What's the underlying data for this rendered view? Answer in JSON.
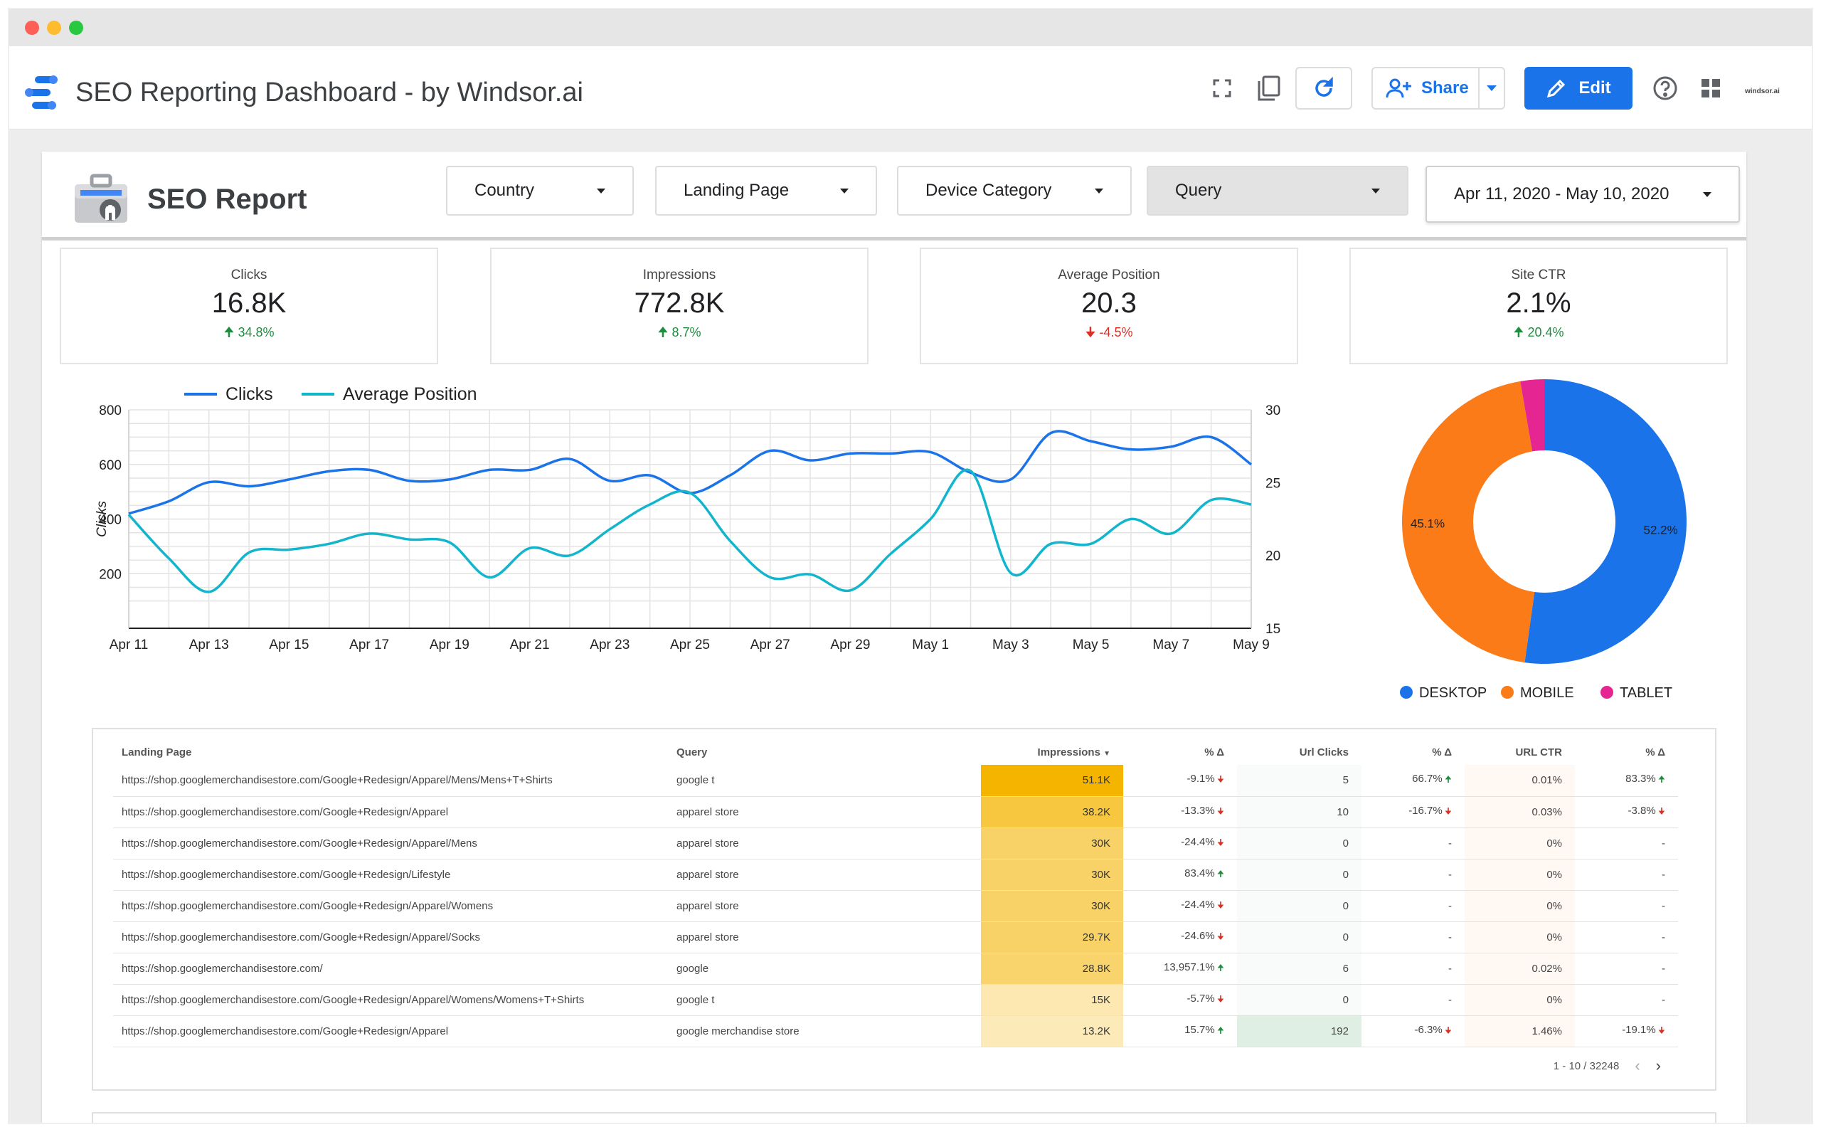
{
  "app": {
    "title": "SEO Reporting Dashboard - by Windsor.ai",
    "brand_mark": "windsor.ai",
    "share_label": "Share",
    "edit_label": "Edit",
    "icons": [
      "fullscreen-icon",
      "copy-icon",
      "refresh-icon",
      "add-person-icon",
      "pencil-icon",
      "help-icon",
      "apps-grid-icon"
    ]
  },
  "report": {
    "title": "SEO Report",
    "filters": {
      "country": "Country",
      "landing_page": "Landing Page",
      "device_category": "Device Category",
      "query": "Query",
      "date_range": "Apr 11, 2020 - May 10, 2020"
    },
    "scorecards": [
      {
        "label": "Clicks",
        "value": "16.8K",
        "delta": "34.8%",
        "direction": "up"
      },
      {
        "label": "Impressions",
        "value": "772.8K",
        "delta": "8.7%",
        "direction": "up"
      },
      {
        "label": "Average Position",
        "value": "20.3",
        "delta": "-4.5%",
        "direction": "down"
      },
      {
        "label": "Site CTR",
        "value": "2.1%",
        "delta": "20.4%",
        "direction": "up"
      }
    ],
    "colors": {
      "primary": "#1a73e8",
      "accent_line": "#12b5cb",
      "desktop": "#1a73e8",
      "mobile": "#fa7b17",
      "tablet": "#e52592",
      "heat": "#f4b400",
      "positive": "#1e8e3e",
      "negative": "#d93025"
    }
  },
  "chart_data": [
    {
      "type": "line",
      "x": [
        "Apr 11",
        "Apr 12",
        "Apr 13",
        "Apr 14",
        "Apr 15",
        "Apr 16",
        "Apr 17",
        "Apr 18",
        "Apr 19",
        "Apr 20",
        "Apr 21",
        "Apr 22",
        "Apr 23",
        "Apr 24",
        "Apr 25",
        "Apr 26",
        "Apr 27",
        "Apr 28",
        "Apr 29",
        "Apr 30",
        "May 1",
        "May 2",
        "May 3",
        "May 4",
        "May 5",
        "May 6",
        "May 7",
        "May 8",
        "May 9"
      ],
      "x_ticks": [
        "Apr 11",
        "Apr 13",
        "Apr 15",
        "Apr 17",
        "Apr 19",
        "Apr 21",
        "Apr 23",
        "Apr 25",
        "Apr 27",
        "Apr 29",
        "May 1",
        "May 3",
        "May 5",
        "May 7",
        "May 9"
      ],
      "series": [
        {
          "name": "Clicks",
          "axis": "left",
          "values": [
            420,
            465,
            535,
            520,
            545,
            575,
            580,
            540,
            545,
            580,
            580,
            620,
            540,
            560,
            495,
            560,
            650,
            615,
            640,
            640,
            645,
            570,
            545,
            715,
            685,
            655,
            665,
            700,
            600
          ]
        },
        {
          "name": "Average Position",
          "axis": "right",
          "values": [
            22.8,
            19.8,
            17.5,
            20.2,
            20.4,
            20.8,
            21.5,
            21.1,
            20.9,
            18.5,
            20.5,
            20.0,
            21.8,
            23.5,
            24.3,
            21.0,
            18.5,
            18.7,
            17.6,
            20.1,
            22.5,
            25.8,
            18.8,
            20.8,
            20.8,
            22.5,
            21.5,
            23.8,
            23.5
          ]
        }
      ],
      "ylabel": "Clicks",
      "ylim": [
        0,
        800
      ],
      "yticks": [
        200,
        400,
        600,
        800
      ],
      "y2lim": [
        15,
        30
      ],
      "y2ticks": [
        15,
        20,
        25,
        30
      ],
      "legend": "top-left",
      "grid": true
    },
    {
      "type": "pie",
      "donut": true,
      "categories": [
        "DESKTOP",
        "MOBILE",
        "TABLET"
      ],
      "values": [
        52.2,
        45.1,
        2.7
      ],
      "labels": [
        "52.2%",
        "45.1%",
        ""
      ],
      "legend": "bottom"
    }
  ],
  "table": {
    "headers": [
      "Landing Page",
      "Query",
      "Impressions",
      "% Δ",
      "Url Clicks",
      "% Δ",
      "URL CTR",
      "% Δ"
    ],
    "sort_marker": "▼",
    "rows": [
      {
        "page": "https://shop.googlemerchandisestore.com/Google+Redesign/Apparel/Mens/Mens+T+Shirts",
        "query": "google t",
        "impressions": "51.1K",
        "imp_delta": "-9.1%",
        "imp_dir": "down",
        "clicks": "5",
        "clicks_delta": "66.7%",
        "clicks_dir": "up",
        "ctr": "0.01%",
        "ctr_delta": "83.3%",
        "ctr_dir": "up",
        "heat": 1.0
      },
      {
        "page": "https://shop.googlemerchandisestore.com/Google+Redesign/Apparel",
        "query": "apparel store",
        "impressions": "38.2K",
        "imp_delta": "-13.3%",
        "imp_dir": "down",
        "clicks": "10",
        "clicks_delta": "-16.7%",
        "clicks_dir": "down",
        "ctr": "0.03%",
        "ctr_delta": "-3.8%",
        "ctr_dir": "down",
        "heat": 0.72
      },
      {
        "page": "https://shop.googlemerchandisestore.com/Google+Redesign/Apparel/Mens",
        "query": "apparel store",
        "impressions": "30K",
        "imp_delta": "-24.4%",
        "imp_dir": "down",
        "clicks": "0",
        "clicks_delta": "-",
        "clicks_dir": "",
        "ctr": "0%",
        "ctr_delta": "-",
        "ctr_dir": "",
        "heat": 0.55
      },
      {
        "page": "https://shop.googlemerchandisestore.com/Google+Redesign/Lifestyle",
        "query": "apparel store",
        "impressions": "30K",
        "imp_delta": "83.4%",
        "imp_dir": "up",
        "clicks": "0",
        "clicks_delta": "-",
        "clicks_dir": "",
        "ctr": "0%",
        "ctr_delta": "-",
        "ctr_dir": "",
        "heat": 0.55
      },
      {
        "page": "https://shop.googlemerchandisestore.com/Google+Redesign/Apparel/Womens",
        "query": "apparel store",
        "impressions": "30K",
        "imp_delta": "-24.4%",
        "imp_dir": "down",
        "clicks": "0",
        "clicks_delta": "-",
        "clicks_dir": "",
        "ctr": "0%",
        "ctr_delta": "-",
        "ctr_dir": "",
        "heat": 0.55
      },
      {
        "page": "https://shop.googlemerchandisestore.com/Google+Redesign/Apparel/Socks",
        "query": "apparel store",
        "impressions": "29.7K",
        "imp_delta": "-24.6%",
        "imp_dir": "down",
        "clicks": "0",
        "clicks_delta": "-",
        "clicks_dir": "",
        "ctr": "0%",
        "ctr_delta": "-",
        "ctr_dir": "",
        "heat": 0.54
      },
      {
        "page": "https://shop.googlemerchandisestore.com/",
        "query": "google",
        "impressions": "28.8K",
        "imp_delta": "13,957.1%",
        "imp_dir": "up",
        "clicks": "6",
        "clicks_delta": "-",
        "clicks_dir": "",
        "ctr": "0.02%",
        "ctr_delta": "-",
        "ctr_dir": "",
        "heat": 0.52
      },
      {
        "page": "https://shop.googlemerchandisestore.com/Google+Redesign/Apparel/Womens/Womens+T+Shirts",
        "query": "google t",
        "impressions": "15K",
        "imp_delta": "-5.7%",
        "imp_dir": "down",
        "clicks": "0",
        "clicks_delta": "-",
        "clicks_dir": "",
        "ctr": "0%",
        "ctr_delta": "-",
        "ctr_dir": "",
        "heat": 0.22
      },
      {
        "page": "https://shop.googlemerchandisestore.com/Google+Redesign/Apparel",
        "query": "google merchandise store",
        "impressions": "13.2K",
        "imp_delta": "15.7%",
        "imp_dir": "up",
        "clicks": "192",
        "clicks_delta": "-6.3%",
        "clicks_dir": "down",
        "ctr": "1.46%",
        "ctr_delta": "-19.1%",
        "ctr_dir": "down",
        "heat": 0.18
      }
    ],
    "pagination": "1 - 10 / 32248"
  }
}
